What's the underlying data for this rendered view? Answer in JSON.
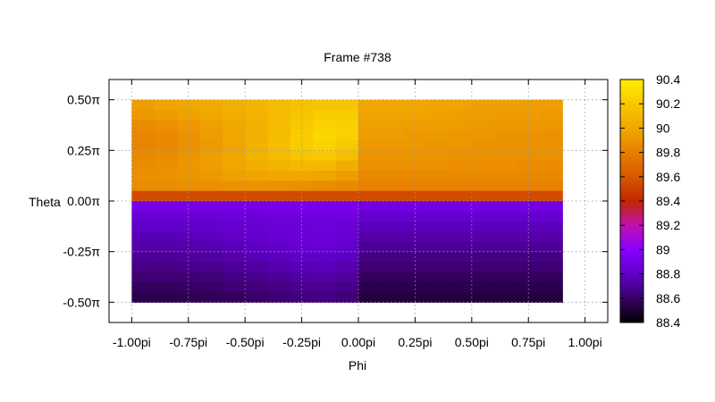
{
  "chart_data": {
    "type": "heatmap",
    "title": "Frame #738",
    "xlabel": "Phi",
    "ylabel": "Theta",
    "grid": true,
    "x_range": [
      -1.1,
      1.1
    ],
    "y_range": [
      -0.6,
      0.6
    ],
    "x_ticks": [
      {
        "value": -1.0,
        "label": "-1.00pi"
      },
      {
        "value": -0.75,
        "label": "-0.75pi"
      },
      {
        "value": -0.5,
        "label": "-0.50pi"
      },
      {
        "value": -0.25,
        "label": "-0.25pi"
      },
      {
        "value": 0.0,
        "label": "0.00pi"
      },
      {
        "value": 0.25,
        "label": "0.25pi"
      },
      {
        "value": 0.5,
        "label": "0.50pi"
      },
      {
        "value": 0.75,
        "label": "0.75pi"
      },
      {
        "value": 1.0,
        "label": "1.00pi"
      }
    ],
    "y_ticks": [
      {
        "value": 0.5,
        "label": "0.50π"
      },
      {
        "value": 0.25,
        "label": "0.25π"
      },
      {
        "value": 0.0,
        "label": "0.00π"
      },
      {
        "value": -0.25,
        "label": "-0.25π"
      },
      {
        "value": -0.5,
        "label": "-0.50π"
      }
    ],
    "data_extent": {
      "x": [
        -1.0,
        0.9
      ],
      "y": [
        -0.5,
        0.5
      ]
    },
    "colorbar": {
      "range": [
        88.4,
        90.4
      ],
      "ticks": [
        "90.4",
        "90.2",
        "90",
        "89.8",
        "89.6",
        "89.4",
        "89.2",
        "89",
        "88.8",
        "88.6",
        "88.4"
      ],
      "palette": [
        "#000000",
        "#3a0068",
        "#6000c8",
        "#8800ff",
        "#c010b0",
        "#c02800",
        "#d85800",
        "#e88000",
        "#f0a800",
        "#f8c800",
        "#ffee00"
      ]
    },
    "x_sample": [
      -0.95,
      -0.85,
      -0.75,
      -0.65,
      -0.55,
      -0.45,
      -0.35,
      -0.25,
      -0.15,
      -0.05,
      0.05,
      0.15,
      0.25,
      0.35,
      0.45,
      0.55,
      0.65,
      0.75,
      0.85
    ],
    "y_sample": [
      0.475,
      0.425,
      0.375,
      0.325,
      0.275,
      0.225,
      0.175,
      0.125,
      0.075,
      0.025,
      -0.025,
      -0.075,
      -0.125,
      -0.175,
      -0.225,
      -0.275,
      -0.325,
      -0.375,
      -0.425,
      -0.475
    ],
    "values": [
      [
        89.95,
        89.98,
        90.0,
        90.02,
        90.05,
        90.08,
        90.12,
        90.16,
        90.18,
        90.18,
        90.0,
        90.0,
        90.0,
        89.98,
        89.98,
        89.96,
        89.96,
        89.95,
        89.95
      ],
      [
        89.92,
        89.94,
        89.97,
        90.0,
        90.03,
        90.07,
        90.12,
        90.18,
        90.22,
        90.22,
        89.98,
        89.98,
        89.98,
        89.97,
        89.96,
        89.95,
        89.94,
        89.94,
        89.93
      ],
      [
        89.86,
        89.88,
        89.92,
        89.96,
        90.0,
        90.05,
        90.12,
        90.2,
        90.26,
        90.24,
        89.96,
        89.96,
        89.95,
        89.95,
        89.94,
        89.93,
        89.92,
        89.92,
        89.91
      ],
      [
        89.83,
        89.85,
        89.89,
        89.94,
        89.99,
        90.05,
        90.13,
        90.22,
        90.28,
        90.24,
        89.94,
        89.94,
        89.93,
        89.93,
        89.92,
        89.91,
        89.9,
        89.9,
        89.89
      ],
      [
        89.82,
        89.84,
        89.88,
        89.93,
        89.99,
        90.06,
        90.14,
        90.22,
        90.26,
        90.2,
        89.92,
        89.92,
        89.92,
        89.91,
        89.91,
        89.9,
        89.89,
        89.89,
        89.88
      ],
      [
        89.84,
        89.86,
        89.9,
        89.95,
        90.0,
        90.06,
        90.12,
        90.18,
        90.2,
        90.14,
        89.9,
        89.9,
        89.9,
        89.9,
        89.89,
        89.89,
        89.88,
        89.88,
        89.88
      ],
      [
        89.86,
        89.88,
        89.91,
        89.95,
        89.99,
        90.03,
        90.07,
        90.1,
        90.1,
        90.04,
        89.88,
        89.88,
        89.88,
        89.88,
        89.87,
        89.87,
        89.87,
        89.86,
        89.86
      ],
      [
        89.87,
        89.88,
        89.9,
        89.93,
        89.96,
        89.98,
        90.0,
        90.0,
        89.98,
        89.94,
        89.84,
        89.84,
        89.84,
        89.84,
        89.84,
        89.84,
        89.84,
        89.84,
        89.84
      ],
      [
        89.86,
        89.86,
        89.87,
        89.88,
        89.89,
        89.89,
        89.89,
        89.88,
        89.86,
        89.84,
        89.8,
        89.8,
        89.8,
        89.8,
        89.8,
        89.8,
        89.8,
        89.8,
        89.8
      ],
      [
        89.55,
        89.55,
        89.55,
        89.55,
        89.55,
        89.55,
        89.55,
        89.55,
        89.55,
        89.55,
        89.55,
        89.55,
        89.55,
        89.55,
        89.55,
        89.55,
        89.55,
        89.55,
        89.55
      ],
      [
        88.92,
        88.92,
        88.92,
        88.92,
        88.92,
        88.92,
        88.93,
        88.93,
        88.93,
        88.93,
        88.9,
        88.9,
        88.9,
        88.9,
        88.9,
        88.9,
        88.9,
        88.9,
        88.9
      ],
      [
        88.84,
        88.84,
        88.85,
        88.85,
        88.86,
        88.86,
        88.87,
        88.87,
        88.88,
        88.88,
        88.83,
        88.83,
        88.83,
        88.83,
        88.83,
        88.83,
        88.83,
        88.83,
        88.83
      ],
      [
        88.8,
        88.8,
        88.81,
        88.82,
        88.83,
        88.84,
        88.85,
        88.86,
        88.87,
        88.86,
        88.78,
        88.78,
        88.78,
        88.78,
        88.78,
        88.78,
        88.78,
        88.78,
        88.78
      ],
      [
        88.76,
        88.76,
        88.77,
        88.78,
        88.8,
        88.82,
        88.84,
        88.85,
        88.86,
        88.84,
        88.74,
        88.74,
        88.74,
        88.74,
        88.74,
        88.74,
        88.74,
        88.74,
        88.74
      ],
      [
        88.73,
        88.73,
        88.74,
        88.75,
        88.77,
        88.79,
        88.81,
        88.83,
        88.84,
        88.82,
        88.7,
        88.7,
        88.7,
        88.7,
        88.7,
        88.7,
        88.7,
        88.7,
        88.7
      ],
      [
        88.7,
        88.7,
        88.71,
        88.72,
        88.74,
        88.76,
        88.78,
        88.8,
        88.81,
        88.79,
        88.66,
        88.66,
        88.66,
        88.66,
        88.66,
        88.66,
        88.66,
        88.66,
        88.66
      ],
      [
        88.66,
        88.66,
        88.67,
        88.68,
        88.7,
        88.72,
        88.74,
        88.76,
        88.77,
        88.75,
        88.62,
        88.62,
        88.62,
        88.62,
        88.62,
        88.62,
        88.62,
        88.62,
        88.62
      ],
      [
        88.62,
        88.62,
        88.63,
        88.64,
        88.66,
        88.68,
        88.7,
        88.72,
        88.73,
        88.71,
        88.58,
        88.58,
        88.58,
        88.58,
        88.58,
        88.58,
        88.58,
        88.58,
        88.58
      ],
      [
        88.58,
        88.58,
        88.59,
        88.6,
        88.62,
        88.64,
        88.66,
        88.68,
        88.69,
        88.67,
        88.55,
        88.55,
        88.55,
        88.55,
        88.55,
        88.55,
        88.55,
        88.55,
        88.55
      ],
      [
        88.55,
        88.55,
        88.56,
        88.57,
        88.58,
        88.6,
        88.62,
        88.64,
        88.65,
        88.63,
        88.52,
        88.52,
        88.52,
        88.52,
        88.52,
        88.52,
        88.52,
        88.52,
        88.52
      ]
    ]
  }
}
